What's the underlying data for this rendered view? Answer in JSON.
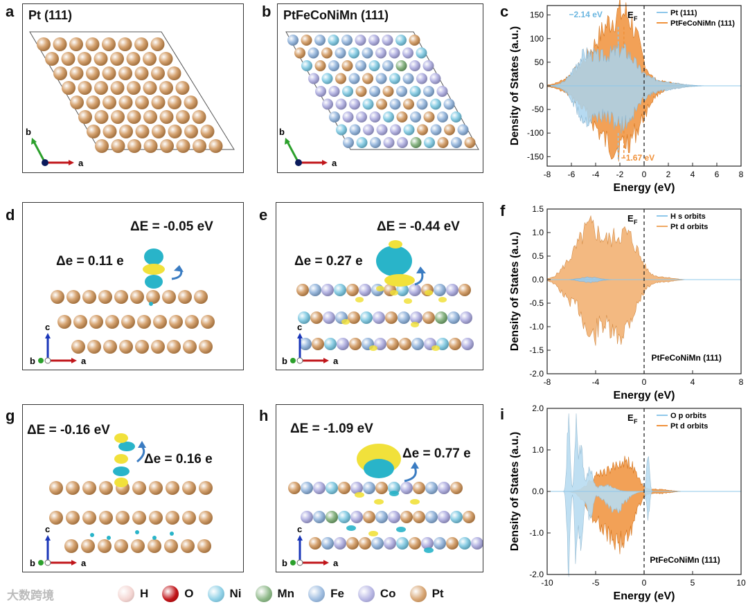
{
  "panels": {
    "a": {
      "label": "a",
      "title": "Pt (111)"
    },
    "b": {
      "label": "b",
      "title": "PtFeCoNiMn (111)"
    },
    "c": {
      "label": "c"
    },
    "d": {
      "label": "d",
      "dE": "ΔE = -0.05 eV",
      "de": "Δe = 0.11 e"
    },
    "e": {
      "label": "e",
      "dE": "ΔE = -0.44 eV",
      "de": "Δe = 0.27 e"
    },
    "f": {
      "label": "f"
    },
    "g": {
      "label": "g",
      "dE": "ΔE = -0.16 eV",
      "de": "Δe = 0.16 e"
    },
    "h": {
      "label": "h",
      "dE": "ΔE = -1.09 eV",
      "de": "Δe = 0.77 e"
    },
    "i": {
      "label": "i"
    }
  },
  "axes_labels": {
    "a": "a",
    "b": "b",
    "c": "c"
  },
  "legend": [
    {
      "label": "H",
      "color": "#f4d6d3"
    },
    {
      "label": "O",
      "color": "#c0151a"
    },
    {
      "label": "Ni",
      "color": "#8fd0e6"
    },
    {
      "label": "Mn",
      "color": "#8fb98a"
    },
    {
      "label": "Fe",
      "color": "#9fbde0"
    },
    {
      "label": "Co",
      "color": "#b8b7e4"
    },
    {
      "label": "Pt",
      "color": "#d7a573"
    }
  ],
  "watermark": "大数跨境",
  "chart_data": [
    {
      "panel": "c",
      "type": "area",
      "xlabel": "Energy (eV)",
      "ylabel": "Density of States (a.u.)",
      "xlim": [
        -8,
        8
      ],
      "ylim": [
        -170,
        170
      ],
      "xticks": [
        -8,
        -6,
        -4,
        -2,
        0,
        2,
        4,
        6,
        8
      ],
      "yticks": [
        -150,
        -100,
        -50,
        0,
        50,
        100,
        150
      ],
      "series": [
        {
          "name": "Pt (111)",
          "color": "#8ec7ea"
        },
        {
          "name": "PtFeCoNiMn (111)",
          "color": "#f0913a"
        }
      ],
      "annotations": [
        "−2.14 eV",
        "−1.67 eV",
        "E_F"
      ],
      "legend": "top-right"
    },
    {
      "panel": "f",
      "type": "area",
      "xlabel": "Energy (eV)",
      "ylabel": "Density of States (a.u.)",
      "xlim": [
        -8,
        8
      ],
      "ylim": [
        -2.0,
        1.5
      ],
      "xticks": [
        -8,
        -4,
        0,
        4,
        8
      ],
      "yticks": [
        -2.0,
        -1.5,
        -1.0,
        -0.5,
        0.0,
        0.5,
        1.0,
        1.5
      ],
      "series": [
        {
          "name": "H s orbits",
          "color": "#8ec7ea"
        },
        {
          "name": "Pt d orbits",
          "color": "#f0a862"
        }
      ],
      "annotations": [
        "E_F",
        "PtFeCoNiMn (111)"
      ],
      "legend": "top-right"
    },
    {
      "panel": "i",
      "type": "area",
      "xlabel": "Energy (eV)",
      "ylabel": "Density of States (a.u.)",
      "xlim": [
        -10,
        10
      ],
      "ylim": [
        -2.0,
        2.0
      ],
      "xticks": [
        -10,
        -5,
        0,
        5,
        10
      ],
      "yticks": [
        -2.0,
        -1.0,
        0.0,
        1.0,
        2.0
      ],
      "series": [
        {
          "name": "O p orbits",
          "color": "#8ec7ea"
        },
        {
          "name": "Pt d orbits",
          "color": "#f0913a"
        }
      ],
      "annotations": [
        "E_F",
        "PtFeCoNiMn (111)"
      ],
      "legend": "top-right"
    }
  ]
}
